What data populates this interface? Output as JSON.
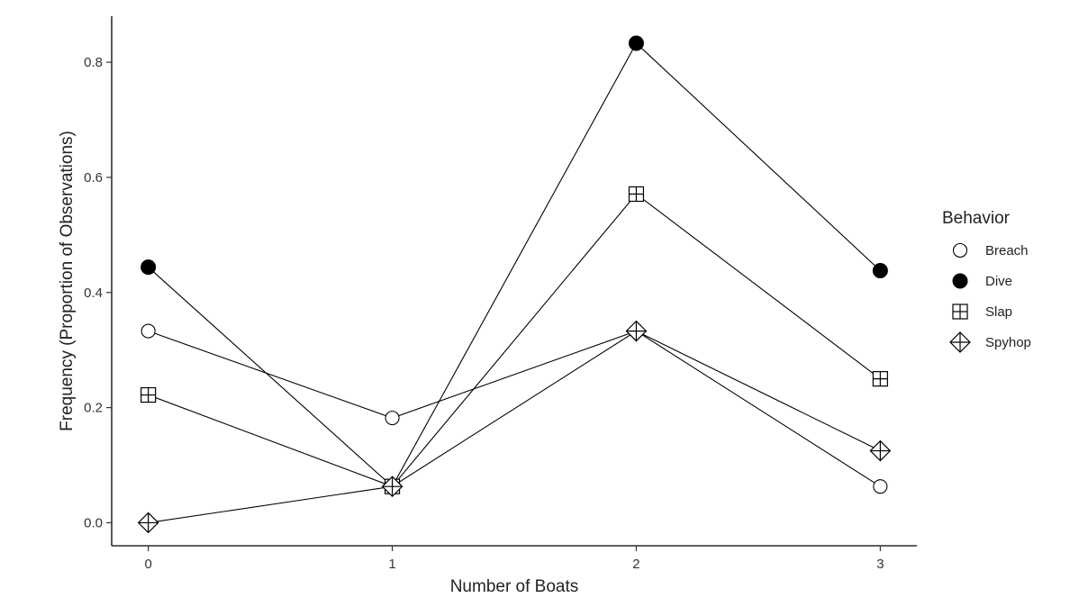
{
  "chart_data": {
    "type": "line",
    "xlabel": "Number of Boats",
    "ylabel": "Frequency (Proportion of Observations)",
    "x": [
      0,
      1,
      2,
      3
    ],
    "x_tick_labels": [
      "0",
      "1",
      "2",
      "3"
    ],
    "y_tick_labels": [
      "0.0",
      "0.2",
      "0.4",
      "0.6",
      "0.8"
    ],
    "y_ticks": [
      0.0,
      0.2,
      0.4,
      0.6,
      0.8
    ],
    "xlim": [
      -0.15,
      3.15
    ],
    "ylim": [
      -0.04,
      0.88
    ],
    "grid": false,
    "legend": {
      "title": "Behavior",
      "position": "right"
    },
    "series": [
      {
        "name": "Breach",
        "marker": "open-circle",
        "values": [
          0.333,
          0.182,
          0.333,
          0.063
        ]
      },
      {
        "name": "Dive",
        "marker": "filled-circle",
        "values": [
          0.444,
          0.063,
          0.833,
          0.438
        ]
      },
      {
        "name": "Slap",
        "marker": "square-plus",
        "values": [
          0.222,
          0.063,
          0.571,
          0.25
        ]
      },
      {
        "name": "Spyhop",
        "marker": "diamond-plus",
        "values": [
          0.0,
          0.063,
          0.333,
          0.125
        ]
      }
    ]
  }
}
